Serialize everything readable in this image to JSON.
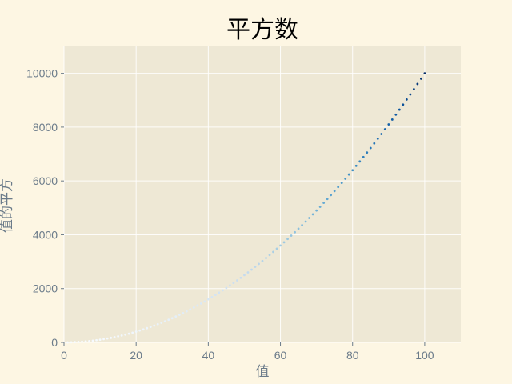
{
  "chart_data": {
    "type": "scatter",
    "title": "平方数",
    "xlabel": "值",
    "ylabel": "值的平方",
    "xlim": [
      0,
      110
    ],
    "ylim": [
      0,
      11000
    ],
    "xticks": [
      0,
      20,
      40,
      60,
      80,
      100
    ],
    "yticks": [
      0,
      2000,
      4000,
      6000,
      8000,
      10000
    ],
    "grid": true,
    "x": [
      1,
      2,
      3,
      4,
      5,
      6,
      7,
      8,
      9,
      10,
      11,
      12,
      13,
      14,
      15,
      16,
      17,
      18,
      19,
      20,
      21,
      22,
      23,
      24,
      25,
      26,
      27,
      28,
      29,
      30,
      31,
      32,
      33,
      34,
      35,
      36,
      37,
      38,
      39,
      40,
      41,
      42,
      43,
      44,
      45,
      46,
      47,
      48,
      49,
      50,
      51,
      52,
      53,
      54,
      55,
      56,
      57,
      58,
      59,
      60,
      61,
      62,
      63,
      64,
      65,
      66,
      67,
      68,
      69,
      70,
      71,
      72,
      73,
      74,
      75,
      76,
      77,
      78,
      79,
      80,
      81,
      82,
      83,
      84,
      85,
      86,
      87,
      88,
      89,
      90,
      91,
      92,
      93,
      94,
      95,
      96,
      97,
      98,
      99,
      100
    ],
    "y": [
      1,
      4,
      9,
      16,
      25,
      36,
      49,
      64,
      81,
      100,
      121,
      144,
      169,
      196,
      225,
      256,
      289,
      324,
      361,
      400,
      441,
      484,
      529,
      576,
      625,
      676,
      729,
      784,
      841,
      900,
      961,
      1024,
      1089,
      1156,
      1225,
      1296,
      1369,
      1444,
      1521,
      1600,
      1681,
      1764,
      1849,
      1936,
      2025,
      2116,
      2209,
      2304,
      2401,
      2500,
      2601,
      2704,
      2809,
      2916,
      3025,
      3136,
      3249,
      3364,
      3481,
      3600,
      3721,
      3844,
      3969,
      4096,
      4225,
      4356,
      4489,
      4624,
      4761,
      4900,
      5041,
      5184,
      5329,
      5476,
      5625,
      5776,
      5929,
      6084,
      6241,
      6400,
      6561,
      6724,
      6889,
      7056,
      7225,
      7396,
      7569,
      7744,
      7921,
      8100,
      8281,
      8464,
      8649,
      8836,
      9025,
      9216,
      9409,
      9604,
      9801,
      10000
    ],
    "colormap": "Blues",
    "colors": {
      "background": "#fdf6e3",
      "plot_area": "#eee8d5",
      "grid": "#ffffff",
      "text": "#6b7b8a"
    }
  }
}
